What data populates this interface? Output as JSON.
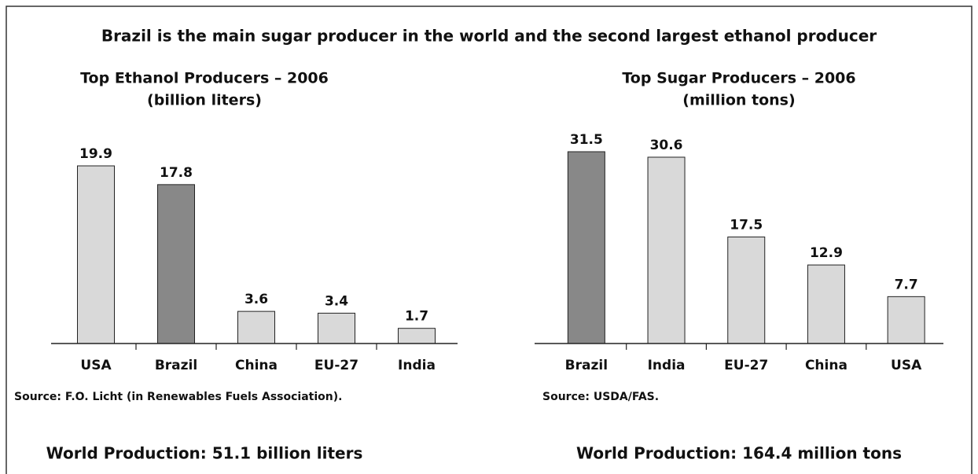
{
  "title": "Brazil is the main sugar producer in the world and the second largest ethanol producer",
  "chart_data": [
    {
      "type": "bar",
      "title": "Top Ethanol Producers – 2006",
      "subtitle": "(billion liters)",
      "categories": [
        "USA",
        "Brazil",
        "China",
        "EU-27",
        "India"
      ],
      "values": [
        19.9,
        17.8,
        3.6,
        3.4,
        1.7
      ],
      "colors": [
        "#d9d9d9",
        "#888888",
        "#d9d9d9",
        "#d9d9d9",
        "#d9d9d9"
      ],
      "source": "Source: F.O. Licht (in Renewables Fuels Association).",
      "note": "World Production: 51.1 billion liters"
    },
    {
      "type": "bar",
      "title": "Top Sugar Producers – 2006",
      "subtitle": "(million tons)",
      "categories": [
        "Brazil",
        "India",
        "EU-27",
        "China",
        "USA"
      ],
      "values": [
        31.5,
        30.6,
        17.5,
        12.9,
        7.7
      ],
      "colors": [
        "#888888",
        "#d9d9d9",
        "#d9d9d9",
        "#d9d9d9",
        "#d9d9d9"
      ],
      "source": "Source: USDA/FAS.",
      "note": "World Production: 164.4 million tons"
    }
  ]
}
